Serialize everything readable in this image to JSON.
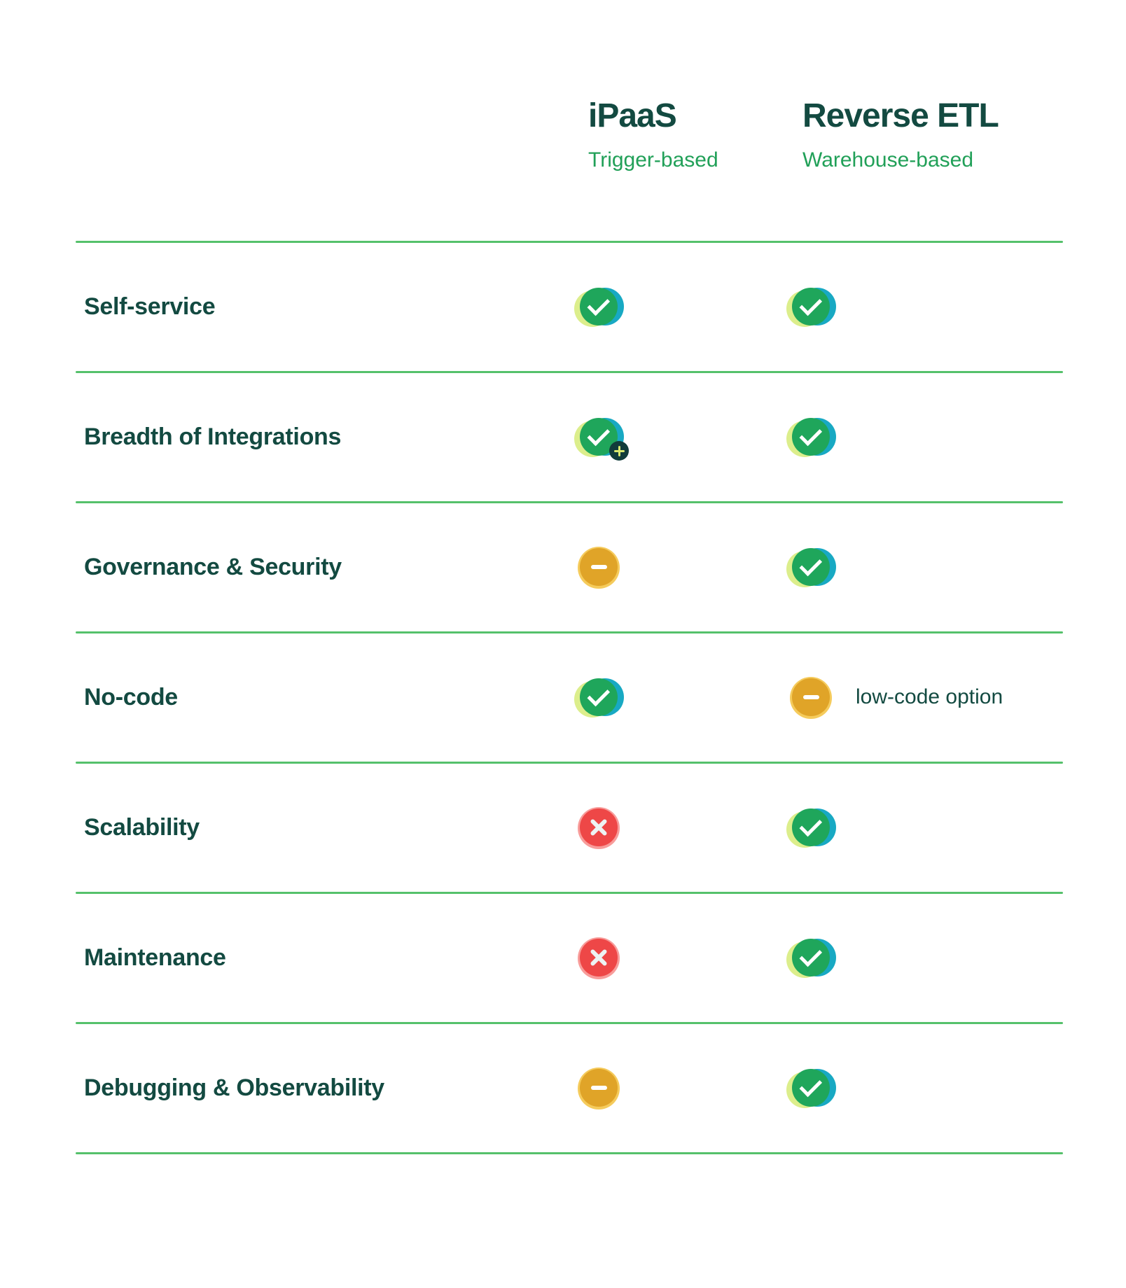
{
  "table": {
    "columns": [
      {
        "title": "iPaaS",
        "subtitle": "Trigger-based"
      },
      {
        "title": "Reverse ETL",
        "subtitle": "Warehouse-based"
      }
    ],
    "rows": [
      {
        "label": "Self-service",
        "ipaas": {
          "icon": "check",
          "icon_name": "check-icon"
        },
        "retl": {
          "icon": "check",
          "icon_name": "check-icon"
        }
      },
      {
        "label": "Breadth of Integrations",
        "ipaas": {
          "icon": "check-plus",
          "icon_name": "check-plus-icon"
        },
        "retl": {
          "icon": "check",
          "icon_name": "check-icon"
        }
      },
      {
        "label": "Governance & Security",
        "ipaas": {
          "icon": "minus",
          "icon_name": "minus-icon"
        },
        "retl": {
          "icon": "check",
          "icon_name": "check-icon"
        }
      },
      {
        "label": "No-code",
        "ipaas": {
          "icon": "check",
          "icon_name": "check-icon"
        },
        "retl": {
          "icon": "minus",
          "icon_name": "minus-icon",
          "note": "low-code option"
        }
      },
      {
        "label": "Scalability",
        "ipaas": {
          "icon": "cross",
          "icon_name": "cross-icon"
        },
        "retl": {
          "icon": "check",
          "icon_name": "check-icon"
        }
      },
      {
        "label": "Maintenance",
        "ipaas": {
          "icon": "cross",
          "icon_name": "cross-icon"
        },
        "retl": {
          "icon": "check",
          "icon_name": "check-icon"
        }
      },
      {
        "label": "Debugging & Observability",
        "ipaas": {
          "icon": "minus",
          "icon_name": "minus-icon"
        },
        "retl": {
          "icon": "check",
          "icon_name": "check-icon"
        }
      }
    ]
  },
  "colors": {
    "heading_text": "#134a41",
    "subtitle_text": "#21a058",
    "divider": "#55c16b",
    "check_green": "#1fa65b",
    "check_lime_shadow": "#dcee8c",
    "check_teal_shadow": "#18a9c3",
    "minus_amber": "#e0a428",
    "minus_amber_light": "#f5cb5c",
    "cross_red": "#ee4747",
    "cross_red_light": "#f89c9a",
    "plus_badge_bg": "#113c3b",
    "plus_badge_glyph": "#d9e96f"
  }
}
